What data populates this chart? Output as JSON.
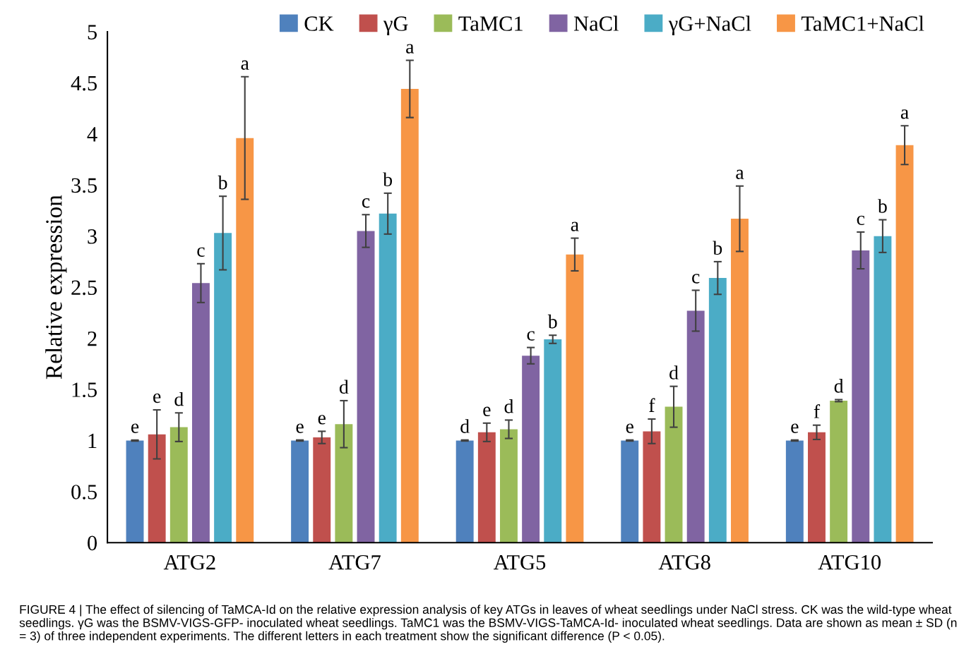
{
  "chart_data": {
    "type": "bar",
    "ylabel": "Relative expression",
    "categories": [
      "ATG2",
      "ATG7",
      "ATG5",
      "ATG8",
      "ATG10"
    ],
    "ylim": [
      0,
      5
    ],
    "yticks": [
      0,
      0.5,
      1,
      1.5,
      2,
      2.5,
      3,
      3.5,
      4,
      4.5,
      5
    ],
    "grid": false,
    "legend": "top",
    "series": [
      {
        "name": "CK",
        "color": "#4f81bd",
        "values": [
          1.0,
          1.0,
          1.0,
          1.0,
          1.0
        ],
        "errors": [
          0.005,
          0.005,
          0.005,
          0.005,
          0.005
        ]
      },
      {
        "name": "γG",
        "color": "#c0504d",
        "values": [
          1.06,
          1.03,
          1.08,
          1.09,
          1.08
        ],
        "errors": [
          0.24,
          0.06,
          0.09,
          0.12,
          0.07
        ]
      },
      {
        "name": "TaMC1",
        "color": "#9bbb59",
        "values": [
          1.13,
          1.16,
          1.11,
          1.33,
          1.39
        ],
        "errors": [
          0.14,
          0.23,
          0.09,
          0.2,
          0.01
        ]
      },
      {
        "name": "NaCl",
        "color": "#8064a2",
        "values": [
          2.54,
          3.05,
          1.83,
          2.27,
          2.86
        ],
        "errors": [
          0.19,
          0.16,
          0.08,
          0.2,
          0.18
        ]
      },
      {
        "name": "γG+NaCl",
        "color": "#4bacc6",
        "values": [
          3.03,
          3.22,
          1.99,
          2.59,
          3.0
        ],
        "errors": [
          0.36,
          0.2,
          0.04,
          0.16,
          0.16
        ]
      },
      {
        "name": "TaMC1+NaCl",
        "color": "#f79646",
        "values": [
          3.96,
          4.44,
          2.82,
          3.17,
          3.89
        ],
        "errors": [
          0.6,
          0.28,
          0.16,
          0.32,
          0.19
        ]
      }
    ],
    "annotations": [
      "e",
      "e",
      "d",
      "e",
      "e",
      "e",
      "e",
      "e",
      "f",
      "f",
      "d",
      "d",
      "d",
      "d",
      "d",
      "c",
      "c",
      "c",
      "c",
      "c",
      "b",
      "b",
      "b",
      "b",
      "b",
      "a",
      "a",
      "a",
      "a",
      "a",
      "FIGURE 4 | The effect of silencing of TaMCA-Id on the relative expression analysis of key ATGs in leaves of wheat seedlings under NaCl stress. CK was the wild-type wheat seedlings. γG was the BSMV-VIGS-GFP- inoculated wheat seedlings. TaMC1 was the BSMV-VIGS-TaMCA-Id- inoculated wheat seedlings. Data are shown as mean ± SD (n = 3) of three independent experiments. The different letters in each treatment show the significant difference (P < 0.05)."
    ]
  }
}
